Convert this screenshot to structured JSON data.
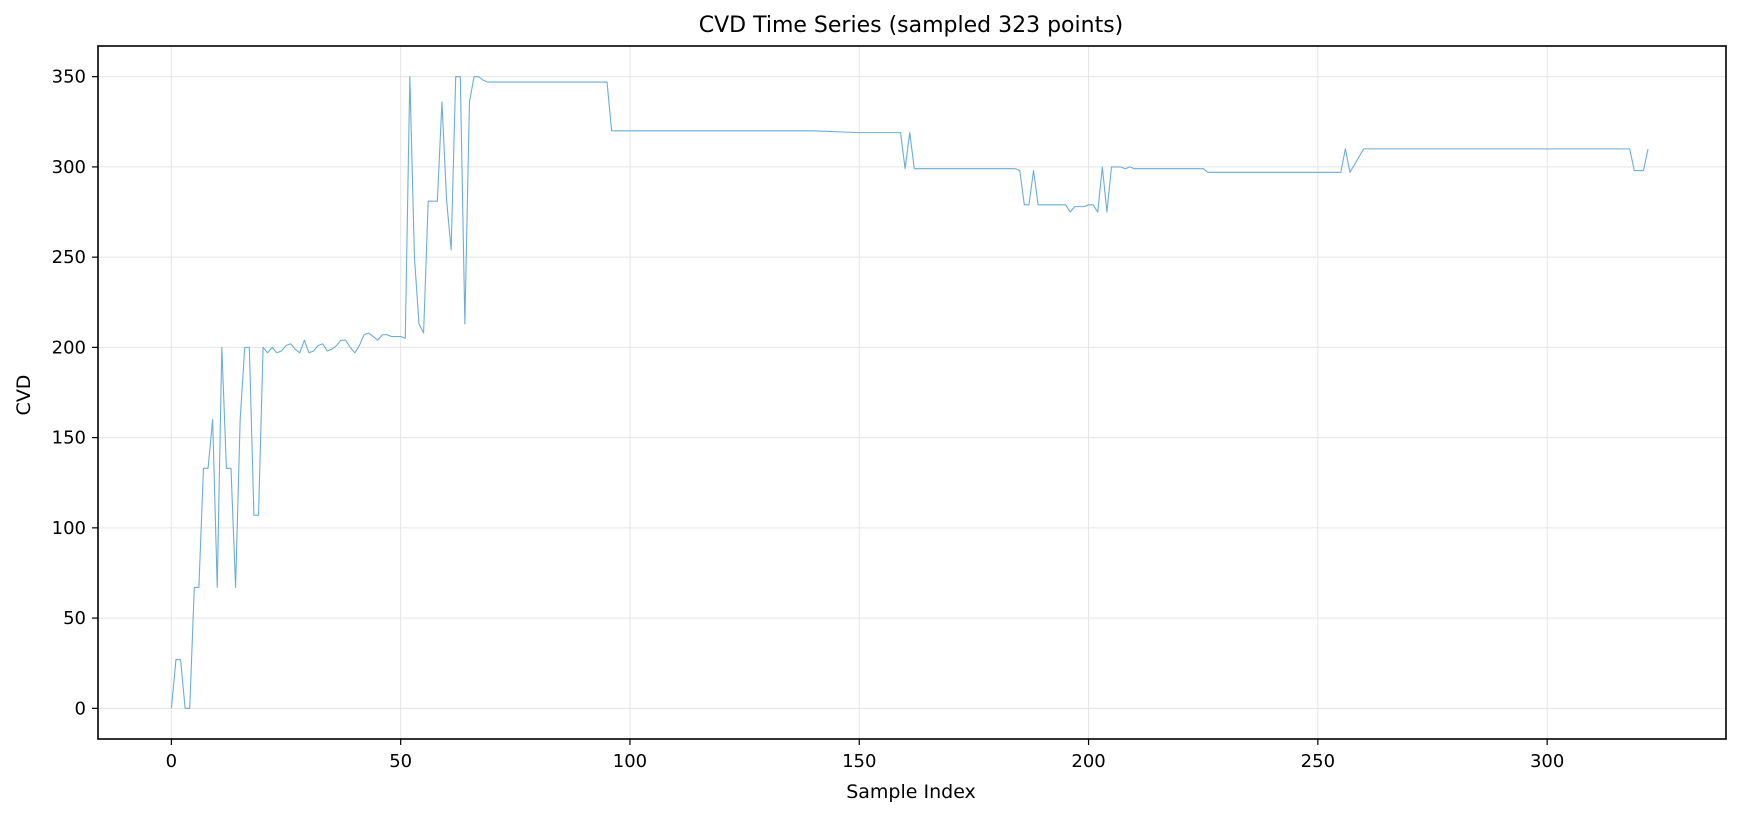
{
  "chart_data": {
    "type": "line",
    "title": "CVD Time Series (sampled 323 points)",
    "xlabel": "Sample Index",
    "ylabel": "CVD",
    "xlim": [
      -16,
      339
    ],
    "ylim": [
      -17,
      367
    ],
    "xticks": [
      0,
      50,
      100,
      150,
      200,
      250,
      300
    ],
    "yticks": [
      0,
      50,
      100,
      150,
      200,
      250,
      300,
      350
    ],
    "grid": true,
    "line_color": "#6baed6",
    "series": [
      {
        "x": [
          0,
          1,
          2,
          3,
          4,
          5,
          6,
          7,
          8,
          9,
          10,
          11,
          12,
          13,
          14,
          15,
          16,
          17,
          18,
          19,
          20,
          21,
          22,
          23,
          24,
          25,
          26,
          27,
          28,
          29,
          30,
          31,
          32,
          33,
          34,
          35,
          36,
          37,
          38,
          39,
          40,
          41,
          42,
          43,
          44,
          45,
          46,
          47,
          48,
          49,
          50,
          51,
          52,
          53,
          54,
          55,
          56,
          57,
          58,
          59,
          60,
          61,
          62,
          63,
          64,
          65,
          66,
          67,
          68,
          69,
          70,
          75,
          80,
          85,
          90,
          95,
          96,
          100,
          110,
          120,
          130,
          140,
          150,
          155,
          159,
          160,
          161,
          162,
          163,
          170,
          175,
          180,
          183,
          184,
          185,
          186,
          187,
          188,
          189,
          190,
          195,
          196,
          197,
          199,
          200,
          201,
          202,
          203,
          204,
          205,
          206,
          207,
          208,
          209,
          210,
          215,
          220,
          225,
          226,
          230,
          240,
          250,
          254,
          255,
          256,
          257,
          260,
          270,
          280,
          290,
          295,
          296,
          297,
          298,
          299,
          300,
          305,
          310,
          315,
          318,
          319,
          320,
          321,
          322
        ],
        "values": [
          0,
          27,
          27,
          0,
          0,
          67,
          67,
          133,
          133,
          160,
          67,
          200,
          133,
          133,
          67,
          160,
          200,
          200,
          107,
          107,
          200,
          197,
          200,
          197,
          198,
          201,
          202,
          199,
          197,
          204,
          197,
          198,
          201,
          202,
          198,
          199,
          201,
          204,
          204,
          200,
          197,
          201,
          207,
          208,
          206,
          204,
          207,
          207,
          206,
          206,
          206,
          205,
          350,
          250,
          213,
          208,
          281,
          281,
          281,
          336,
          282,
          254,
          350,
          350,
          213,
          336,
          350,
          350,
          348,
          347,
          347,
          347,
          347,
          347,
          347,
          347,
          320,
          320,
          320,
          320,
          320,
          320,
          319,
          319,
          319,
          299,
          319,
          299,
          299,
          299,
          299,
          299,
          299,
          299,
          298,
          279,
          279,
          298,
          279,
          279,
          279,
          275,
          278,
          278,
          279,
          279,
          275,
          300,
          275,
          300,
          300,
          300,
          299,
          300,
          299,
          299,
          299,
          299,
          297,
          297,
          297,
          297,
          297,
          297,
          310,
          297,
          310,
          310,
          310,
          310,
          310,
          310,
          310,
          310,
          310,
          310,
          310,
          310,
          310,
          310,
          298,
          298,
          298,
          310
        ]
      }
    ]
  }
}
